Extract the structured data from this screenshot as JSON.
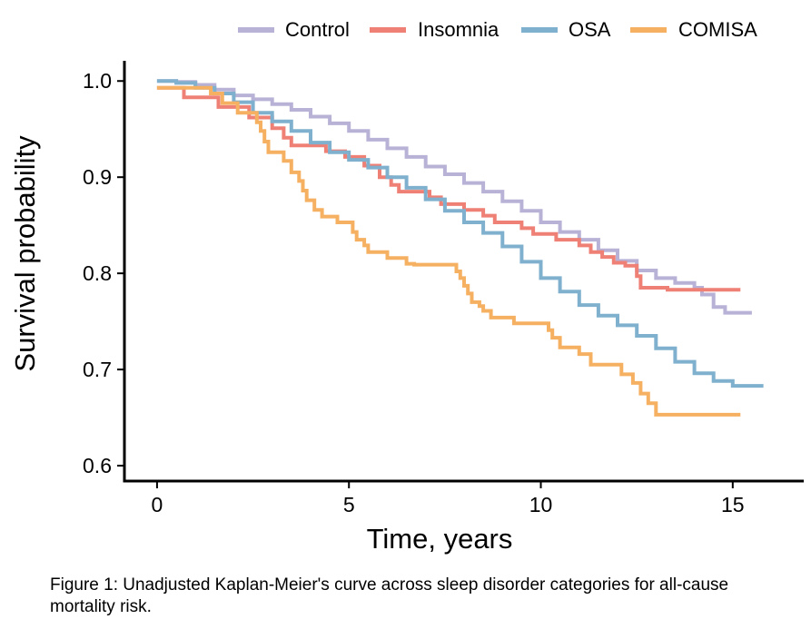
{
  "chart_data": {
    "type": "line",
    "step": true,
    "title": "",
    "xlabel": "Time, years",
    "ylabel": "Survival probability",
    "xlim": [
      -0.85,
      16.85
    ],
    "ylim": [
      0.584,
      1.021
    ],
    "x_ticks": [
      0,
      5,
      10,
      15
    ],
    "x_tick_labels": [
      "0",
      "5",
      "10",
      "15"
    ],
    "y_ticks": [
      0.6,
      0.7,
      0.8,
      0.9,
      1.0
    ],
    "y_tick_labels": [
      "0.6",
      "0.7",
      "0.8",
      "0.9",
      "1.0"
    ],
    "grid": false,
    "legend_position": "top",
    "series": [
      {
        "name": "Control",
        "color": "#b8b2d6",
        "points": [
          [
            0,
            1.0
          ],
          [
            0.5,
            0.999
          ],
          [
            1,
            0.996
          ],
          [
            1.5,
            0.991
          ],
          [
            2,
            0.985
          ],
          [
            2.5,
            0.981
          ],
          [
            3,
            0.976
          ],
          [
            3.5,
            0.97
          ],
          [
            4,
            0.963
          ],
          [
            4.5,
            0.956
          ],
          [
            5,
            0.948
          ],
          [
            5.5,
            0.939
          ],
          [
            6,
            0.93
          ],
          [
            6.5,
            0.921
          ],
          [
            7,
            0.911
          ],
          [
            7.5,
            0.903
          ],
          [
            8,
            0.894
          ],
          [
            8.5,
            0.885
          ],
          [
            9,
            0.875
          ],
          [
            9.5,
            0.865
          ],
          [
            10,
            0.853
          ],
          [
            10.5,
            0.843
          ],
          [
            11,
            0.835
          ],
          [
            11.5,
            0.824
          ],
          [
            12,
            0.813
          ],
          [
            12.5,
            0.803
          ],
          [
            13,
            0.795
          ],
          [
            13.5,
            0.79
          ],
          [
            14,
            0.785
          ],
          [
            14.2,
            0.778
          ],
          [
            14.5,
            0.765
          ],
          [
            14.8,
            0.759
          ],
          [
            15.5,
            0.759
          ]
        ]
      },
      {
        "name": "Insomnia",
        "color": "#ef8076",
        "points": [
          [
            0,
            0.993
          ],
          [
            0.7,
            0.983
          ],
          [
            1.6,
            0.973
          ],
          [
            2.4,
            0.962
          ],
          [
            3.0,
            0.951
          ],
          [
            3.3,
            0.941
          ],
          [
            3.5,
            0.933
          ],
          [
            4.4,
            0.927
          ],
          [
            4.9,
            0.921
          ],
          [
            5.4,
            0.912
          ],
          [
            5.8,
            0.9
          ],
          [
            6.1,
            0.892
          ],
          [
            6.3,
            0.885
          ],
          [
            7.1,
            0.879
          ],
          [
            7.4,
            0.872
          ],
          [
            8.0,
            0.866
          ],
          [
            8.5,
            0.86
          ],
          [
            8.8,
            0.853
          ],
          [
            9.5,
            0.847
          ],
          [
            9.8,
            0.841
          ],
          [
            10.4,
            0.835
          ],
          [
            11.0,
            0.829
          ],
          [
            11.3,
            0.822
          ],
          [
            11.6,
            0.817
          ],
          [
            11.9,
            0.811
          ],
          [
            12.2,
            0.808
          ],
          [
            12.5,
            0.797
          ],
          [
            12.6,
            0.785
          ],
          [
            13.3,
            0.783
          ],
          [
            15.2,
            0.783
          ]
        ]
      },
      {
        "name": "OSA",
        "color": "#7fb0cd",
        "points": [
          [
            0,
            1.0
          ],
          [
            0.5,
            0.998
          ],
          [
            1,
            0.993
          ],
          [
            1.5,
            0.987
          ],
          [
            2,
            0.978
          ],
          [
            2.5,
            0.967
          ],
          [
            3,
            0.958
          ],
          [
            3.5,
            0.948
          ],
          [
            4,
            0.936
          ],
          [
            4.5,
            0.926
          ],
          [
            5,
            0.918
          ],
          [
            5.5,
            0.91
          ],
          [
            6,
            0.9
          ],
          [
            6.5,
            0.889
          ],
          [
            7,
            0.877
          ],
          [
            7.5,
            0.865
          ],
          [
            8,
            0.853
          ],
          [
            8.5,
            0.842
          ],
          [
            9,
            0.828
          ],
          [
            9.5,
            0.812
          ],
          [
            10,
            0.795
          ],
          [
            10.5,
            0.781
          ],
          [
            11,
            0.767
          ],
          [
            11.5,
            0.756
          ],
          [
            12,
            0.746
          ],
          [
            12.5,
            0.735
          ],
          [
            13,
            0.722
          ],
          [
            13.5,
            0.708
          ],
          [
            14,
            0.696
          ],
          [
            14.5,
            0.688
          ],
          [
            15,
            0.683
          ],
          [
            15.8,
            0.683
          ]
        ]
      },
      {
        "name": "COMISA",
        "color": "#f6b062",
        "points": [
          [
            0,
            0.993
          ],
          [
            1.4,
            0.987
          ],
          [
            1.7,
            0.977
          ],
          [
            2.1,
            0.967
          ],
          [
            2.6,
            0.957
          ],
          [
            2.7,
            0.948
          ],
          [
            2.8,
            0.937
          ],
          [
            2.9,
            0.926
          ],
          [
            3.3,
            0.917
          ],
          [
            3.5,
            0.905
          ],
          [
            3.7,
            0.896
          ],
          [
            3.8,
            0.886
          ],
          [
            3.9,
            0.876
          ],
          [
            4.1,
            0.866
          ],
          [
            4.3,
            0.859
          ],
          [
            4.7,
            0.853
          ],
          [
            5.1,
            0.843
          ],
          [
            5.2,
            0.835
          ],
          [
            5.4,
            0.829
          ],
          [
            5.5,
            0.822
          ],
          [
            6.0,
            0.816
          ],
          [
            6.5,
            0.81
          ],
          [
            6.7,
            0.809
          ],
          [
            7.8,
            0.802
          ],
          [
            7.9,
            0.795
          ],
          [
            8.0,
            0.787
          ],
          [
            8.1,
            0.779
          ],
          [
            8.2,
            0.77
          ],
          [
            8.4,
            0.766
          ],
          [
            8.5,
            0.761
          ],
          [
            8.7,
            0.754
          ],
          [
            9.3,
            0.748
          ],
          [
            10.2,
            0.741
          ],
          [
            10.3,
            0.733
          ],
          [
            10.5,
            0.723
          ],
          [
            11.0,
            0.716
          ],
          [
            11.3,
            0.705
          ],
          [
            12.1,
            0.695
          ],
          [
            12.4,
            0.686
          ],
          [
            12.6,
            0.675
          ],
          [
            12.8,
            0.665
          ],
          [
            13.0,
            0.653
          ],
          [
            15.2,
            0.653
          ]
        ]
      }
    ],
    "caption": "Figure 1: Unadjusted Kaplan-Meier's curve across sleep disorder categories for all-cause mortality risk."
  }
}
